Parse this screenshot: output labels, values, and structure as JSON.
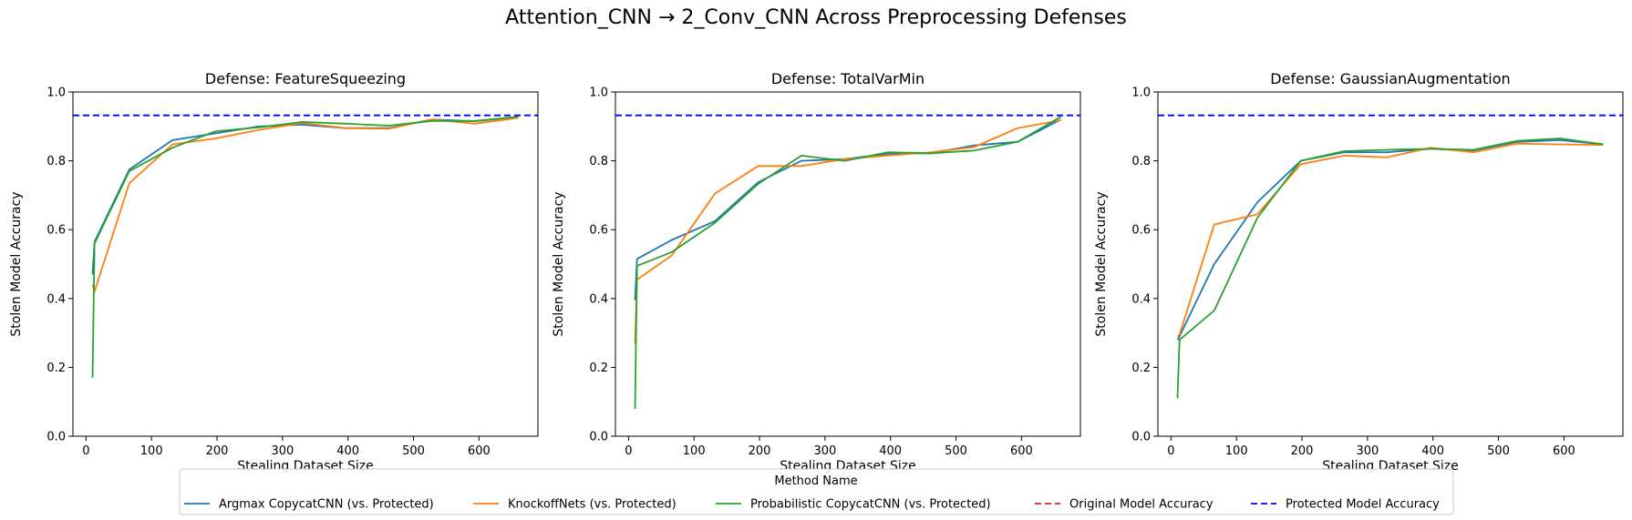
{
  "figure_title": "Attention_CNN → 2_Conv_CNN Across Preprocessing Defenses",
  "legend": {
    "title": "Method Name",
    "placement": "bottom-center"
  },
  "colors": {
    "argmax": "#1f77b4",
    "knockoff": "#ff7f0e",
    "probabilistic": "#2ca02c",
    "original": "#d62728",
    "protected": "#0000ff"
  },
  "chart_data": [
    {
      "type": "line",
      "title": "Defense: FeatureSqueezing",
      "xlabel": "Stealing Dataset Size",
      "ylabel": "Stolen Model Accuracy",
      "xlim": [
        -20,
        690
      ],
      "ylim": [
        0.0,
        1.0
      ],
      "x_ticks": [
        "0",
        "100",
        "200",
        "300",
        "400",
        "500",
        "600"
      ],
      "y_ticks": [
        "0.0",
        "0.2",
        "0.4",
        "0.6",
        "0.8",
        "1.0"
      ],
      "x": [
        10,
        13,
        66,
        132,
        198,
        264,
        330,
        396,
        462,
        528,
        594,
        660
      ],
      "series": [
        {
          "name": "Argmax CopycatCNN (vs. Protected)",
          "color_key": "argmax",
          "style": "solid",
          "values": [
            0.47,
            0.565,
            0.775,
            0.86,
            0.88,
            0.9,
            0.905,
            0.895,
            0.895,
            0.92,
            0.915,
            0.928
          ]
        },
        {
          "name": "KnockoffNets (vs. Protected)",
          "color_key": "knockoff",
          "style": "solid",
          "values": [
            0.44,
            0.42,
            0.735,
            0.848,
            0.865,
            0.89,
            0.91,
            0.895,
            0.893,
            0.92,
            0.908,
            0.925
          ]
        },
        {
          "name": "Probabilistic CopycatCNN (vs. Protected)",
          "color_key": "probabilistic",
          "style": "solid",
          "values": [
            0.17,
            0.56,
            0.77,
            0.838,
            0.886,
            0.897,
            0.913,
            0.908,
            0.902,
            0.916,
            0.916,
            0.928
          ]
        }
      ],
      "reference_lines": [
        {
          "name": "Protected Model Accuracy",
          "color_key": "protected",
          "style": "dashed",
          "value": 0.932
        }
      ]
    },
    {
      "type": "line",
      "title": "Defense: TotalVarMin",
      "xlabel": "Stealing Dataset Size",
      "ylabel": "Stolen Model Accuracy",
      "xlim": [
        -20,
        690
      ],
      "ylim": [
        0.0,
        1.0
      ],
      "x_ticks": [
        "0",
        "100",
        "200",
        "300",
        "400",
        "500",
        "600"
      ],
      "y_ticks": [
        "0.0",
        "0.2",
        "0.4",
        "0.6",
        "0.8",
        "1.0"
      ],
      "x": [
        10,
        13,
        66,
        132,
        198,
        264,
        330,
        396,
        462,
        528,
        594,
        660
      ],
      "series": [
        {
          "name": "Argmax CopycatCNN (vs. Protected)",
          "color_key": "argmax",
          "style": "solid",
          "values": [
            0.395,
            0.515,
            0.57,
            0.625,
            0.738,
            0.8,
            0.805,
            0.82,
            0.822,
            0.845,
            0.855,
            0.92
          ]
        },
        {
          "name": "KnockoffNets (vs. Protected)",
          "color_key": "knockoff",
          "style": "solid",
          "values": [
            0.27,
            0.455,
            0.525,
            0.705,
            0.785,
            0.785,
            0.805,
            0.815,
            0.825,
            0.84,
            0.895,
            0.918
          ]
        },
        {
          "name": "Probabilistic CopycatCNN (vs. Protected)",
          "color_key": "probabilistic",
          "style": "solid",
          "values": [
            0.08,
            0.495,
            0.535,
            0.62,
            0.733,
            0.815,
            0.8,
            0.825,
            0.822,
            0.83,
            0.855,
            0.928
          ]
        }
      ],
      "reference_lines": [
        {
          "name": "Protected Model Accuracy",
          "color_key": "protected",
          "style": "dashed",
          "value": 0.932
        }
      ]
    },
    {
      "type": "line",
      "title": "Defense: GaussianAugmentation",
      "xlabel": "Stealing Dataset Size",
      "ylabel": "Stolen Model Accuracy",
      "xlim": [
        -20,
        690
      ],
      "ylim": [
        0.0,
        1.0
      ],
      "x_ticks": [
        "0",
        "100",
        "200",
        "300",
        "400",
        "500",
        "600"
      ],
      "y_ticks": [
        "0.0",
        "0.2",
        "0.4",
        "0.6",
        "0.8",
        "1.0"
      ],
      "x": [
        10,
        13,
        66,
        132,
        198,
        264,
        330,
        396,
        462,
        528,
        594,
        660
      ],
      "series": [
        {
          "name": "Argmax CopycatCNN (vs. Protected)",
          "color_key": "argmax",
          "style": "solid",
          "values": [
            0.28,
            0.29,
            0.5,
            0.68,
            0.8,
            0.825,
            0.825,
            0.835,
            0.83,
            0.855,
            0.86,
            0.848
          ]
        },
        {
          "name": "KnockoffNets (vs. Protected)",
          "color_key": "knockoff",
          "style": "solid",
          "values": [
            0.29,
            0.295,
            0.615,
            0.645,
            0.79,
            0.815,
            0.81,
            0.838,
            0.825,
            0.85,
            0.848,
            0.846
          ]
        },
        {
          "name": "Probabilistic CopycatCNN (vs. Protected)",
          "color_key": "probabilistic",
          "style": "solid",
          "values": [
            0.11,
            0.28,
            0.365,
            0.635,
            0.8,
            0.828,
            0.832,
            0.835,
            0.832,
            0.858,
            0.865,
            0.848
          ]
        }
      ],
      "reference_lines": [
        {
          "name": "Protected Model Accuracy",
          "color_key": "protected",
          "style": "dashed",
          "value": 0.932
        }
      ]
    }
  ],
  "legend_entries": [
    {
      "label": "Argmax CopycatCNN (vs. Protected)",
      "color_key": "argmax",
      "style": "solid"
    },
    {
      "label": "KnockoffNets (vs. Protected)",
      "color_key": "knockoff",
      "style": "solid"
    },
    {
      "label": "Probabilistic CopycatCNN (vs. Protected)",
      "color_key": "probabilistic",
      "style": "solid"
    },
    {
      "label": "Original Model Accuracy",
      "color_key": "original",
      "style": "dashed"
    },
    {
      "label": "Protected Model Accuracy",
      "color_key": "protected",
      "style": "dashed"
    }
  ]
}
